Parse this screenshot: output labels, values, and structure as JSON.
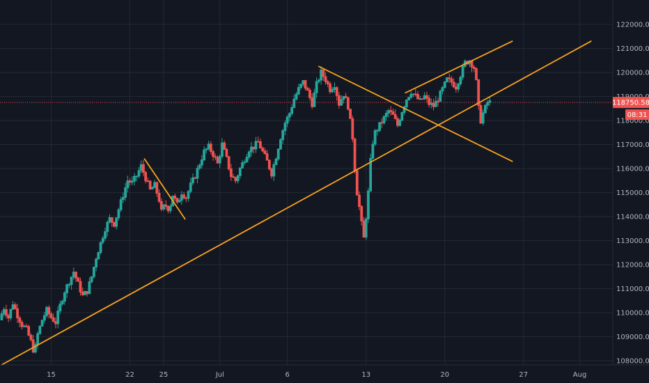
{
  "chart_data": {
    "type": "candlestick",
    "ylim": [
      107900,
      122600
    ],
    "x_ticks": [
      {
        "label": "15",
        "day": 15
      },
      {
        "label": "22",
        "day": 22
      },
      {
        "label": "25",
        "day": 25
      },
      {
        "label": "Jul",
        "day": 30
      },
      {
        "label": "6",
        "day": 36
      },
      {
        "label": "13",
        "day": 43
      },
      {
        "label": "20",
        "day": 50
      },
      {
        "label": "27",
        "day": 57
      },
      {
        "label": "Aug",
        "day": 62
      }
    ],
    "y_ticks": [
      108000,
      109000,
      110000,
      111000,
      112000,
      113000,
      114000,
      115000,
      116000,
      117000,
      118000,
      119000,
      120000,
      121000,
      122000
    ],
    "y_tick_labels": [
      "108000.00",
      "109000.00",
      "110000.00",
      "111000.00",
      "112000.00",
      "113000.00",
      "114000.00",
      "115000.00",
      "116000.00",
      "117000.00",
      "118000.00",
      "119000.00",
      "120000.00",
      "121000.00",
      "122000.00"
    ],
    "last_price": 118750.58,
    "last_price_label": "118750.58",
    "countdown": "08:31",
    "x_range_days": [
      10.6,
      64.2
    ],
    "series_path": [
      [
        10.6,
        109700
      ],
      [
        11.0,
        110200
      ],
      [
        11.4,
        109800
      ],
      [
        11.8,
        110400
      ],
      [
        12.2,
        109900
      ],
      [
        12.6,
        109500
      ],
      [
        13.0,
        109300
      ],
      [
        13.4,
        108800
      ],
      [
        13.7,
        108300
      ],
      [
        14.0,
        109100
      ],
      [
        14.4,
        109700
      ],
      [
        14.8,
        110100
      ],
      [
        15.2,
        109800
      ],
      [
        15.6,
        109600
      ],
      [
        16.0,
        110300
      ],
      [
        16.4,
        110900
      ],
      [
        16.8,
        111300
      ],
      [
        17.2,
        111700
      ],
      [
        17.6,
        111200
      ],
      [
        18.0,
        110700
      ],
      [
        18.4,
        110900
      ],
      [
        18.8,
        111500
      ],
      [
        19.2,
        112300
      ],
      [
        19.6,
        112900
      ],
      [
        20.0,
        113500
      ],
      [
        20.4,
        113900
      ],
      [
        20.8,
        113700
      ],
      [
        21.2,
        114300
      ],
      [
        21.6,
        114900
      ],
      [
        22.0,
        115500
      ],
      [
        22.4,
        115400
      ],
      [
        22.8,
        115700
      ],
      [
        23.2,
        116100
      ],
      [
        23.6,
        115600
      ],
      [
        24.0,
        115100
      ],
      [
        24.4,
        115300
      ],
      [
        24.8,
        114700
      ],
      [
        25.0,
        114200
      ],
      [
        25.3,
        114500
      ],
      [
        25.7,
        114300
      ],
      [
        26.0,
        114900
      ],
      [
        26.4,
        114500
      ],
      [
        26.8,
        115000
      ],
      [
        27.2,
        114800
      ],
      [
        27.6,
        115300
      ],
      [
        28.0,
        115700
      ],
      [
        28.4,
        116200
      ],
      [
        28.8,
        116700
      ],
      [
        29.2,
        116900
      ],
      [
        29.6,
        116600
      ],
      [
        30.0,
        116200
      ],
      [
        30.4,
        117000
      ],
      [
        30.8,
        116400
      ],
      [
        31.2,
        115700
      ],
      [
        31.6,
        115500
      ],
      [
        32.0,
        116000
      ],
      [
        32.4,
        116400
      ],
      [
        32.8,
        116800
      ],
      [
        33.2,
        116900
      ],
      [
        33.6,
        117100
      ],
      [
        34.0,
        116700
      ],
      [
        34.4,
        116300
      ],
      [
        34.8,
        115800
      ],
      [
        35.2,
        116500
      ],
      [
        35.6,
        117300
      ],
      [
        36.0,
        117900
      ],
      [
        36.4,
        118300
      ],
      [
        36.8,
        118900
      ],
      [
        37.2,
        119300
      ],
      [
        37.6,
        119600
      ],
      [
        38.0,
        119200
      ],
      [
        38.4,
        118700
      ],
      [
        38.8,
        119500
      ],
      [
        39.2,
        120000
      ],
      [
        39.6,
        119700
      ],
      [
        40.0,
        119300
      ],
      [
        40.4,
        119500
      ],
      [
        40.8,
        118700
      ],
      [
        41.2,
        119100
      ],
      [
        41.6,
        118600
      ],
      [
        42.0,
        117300
      ],
      [
        42.2,
        116000
      ],
      [
        42.4,
        115000
      ],
      [
        42.6,
        114400
      ],
      [
        42.8,
        113700
      ],
      [
        43.0,
        113100
      ],
      [
        43.2,
        114000
      ],
      [
        43.4,
        115000
      ],
      [
        43.6,
        116300
      ],
      [
        43.8,
        117100
      ],
      [
        44.0,
        117500
      ],
      [
        44.4,
        117800
      ],
      [
        44.8,
        118100
      ],
      [
        45.2,
        118400
      ],
      [
        45.6,
        118200
      ],
      [
        46.0,
        117800
      ],
      [
        46.4,
        118400
      ],
      [
        46.8,
        118900
      ],
      [
        47.2,
        119200
      ],
      [
        47.6,
        119000
      ],
      [
        48.0,
        118800
      ],
      [
        48.4,
        119000
      ],
      [
        48.8,
        118700
      ],
      [
        49.2,
        118600
      ],
      [
        49.6,
        118900
      ],
      [
        50.0,
        119300
      ],
      [
        50.4,
        119700
      ],
      [
        50.8,
        119600
      ],
      [
        51.2,
        119400
      ],
      [
        51.6,
        119900
      ],
      [
        52.0,
        120400
      ],
      [
        52.4,
        120500
      ],
      [
        52.8,
        120200
      ],
      [
        53.0,
        119600
      ],
      [
        53.2,
        118500
      ],
      [
        53.4,
        118000
      ],
      [
        53.6,
        118300
      ],
      [
        54.0,
        118750.58
      ]
    ],
    "candle_width_days": 0.18,
    "trendlines": [
      {
        "from": [
          10.6,
          107830
        ],
        "to": [
          63.0,
          121300
        ]
      },
      {
        "from": [
          23.3,
          116400
        ],
        "to": [
          26.9,
          113900
        ]
      },
      {
        "from": [
          38.8,
          120250
        ],
        "to": [
          56.0,
          116300
        ]
      },
      {
        "from": [
          46.5,
          119150
        ],
        "to": [
          56.0,
          121300
        ]
      }
    ]
  },
  "colors": {
    "background": "#131722",
    "up": "#26a69a",
    "down": "#ef5350",
    "trendline": "#f7a31f",
    "grid": "#242833",
    "axis_text": "#b2b5be",
    "badge": "#ef5350"
  }
}
